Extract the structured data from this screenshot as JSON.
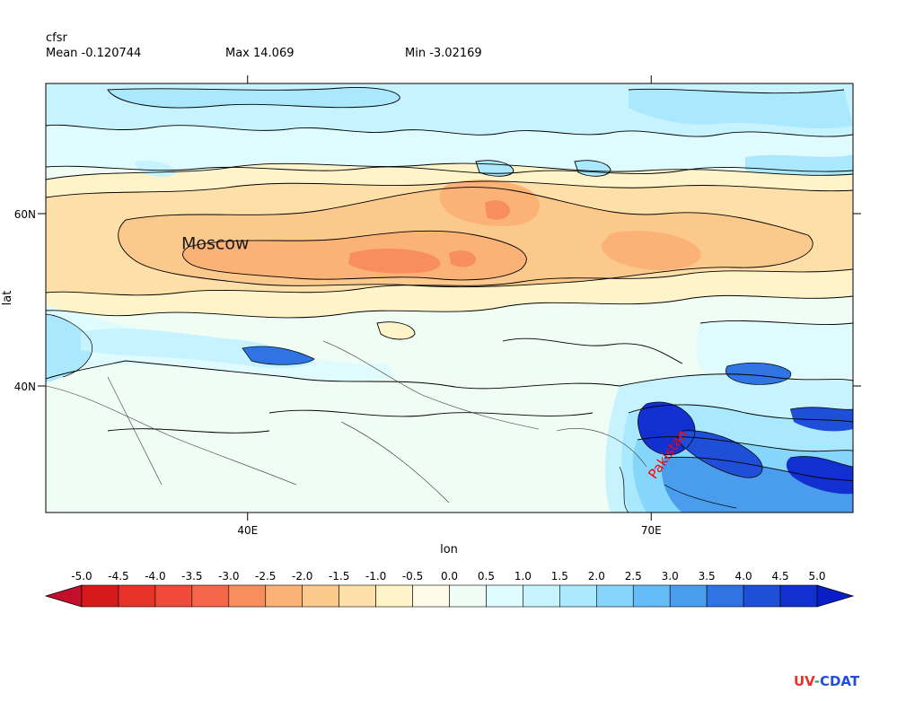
{
  "header": {
    "dataset": "cfsr",
    "mean": "Mean -0.120744",
    "max": "Max 14.069",
    "min": "Min -3.02169"
  },
  "map": {
    "xlabel": "lon",
    "ylabel": "lat",
    "x_ticks": [
      {
        "value": 40,
        "label": "40E"
      },
      {
        "value": 70,
        "label": "70E"
      }
    ],
    "y_ticks": [
      {
        "value": 40,
        "label": "40N"
      },
      {
        "value": 60,
        "label": "60N"
      }
    ],
    "lon_range": [
      25,
      85
    ],
    "lat_range": [
      25,
      75
    ],
    "place_labels": [
      {
        "text": "Moscow",
        "lon": 37.6,
        "lat": 55.7,
        "color": "#1a1a1a",
        "rotate": 0
      },
      {
        "text": "Pakistan",
        "lon": 71.5,
        "lat": 31.5,
        "color": "#ff0000",
        "rotate": -55
      }
    ]
  },
  "colorbar": {
    "levels": [
      "-5.0",
      "-4.5",
      "-4.0",
      "-3.5",
      "-3.0",
      "-2.5",
      "-2.0",
      "-1.5",
      "-1.0",
      "-0.5",
      "0.0",
      "0.5",
      "1.0",
      "1.5",
      "2.0",
      "2.5",
      "3.0",
      "3.5",
      "4.0",
      "4.5",
      "5.0"
    ],
    "colors": [
      "#d7191c",
      "#e8332b",
      "#f04a3a",
      "#f5674b",
      "#f88e5e",
      "#fbb276",
      "#fcc98d",
      "#fde0a8",
      "#fff3c9",
      "#fffbe8",
      "#effdf4",
      "#e0fbfd",
      "#c6f3fd",
      "#a9e8fd",
      "#86d6fb",
      "#65bbf5",
      "#4a9cec",
      "#2f74e2",
      "#1f4fd8",
      "#1230cf"
    ],
    "under_color": "#c40f2c",
    "over_color": "#0b1dc8"
  },
  "logo": {
    "text": "UV-CDAT",
    "colors": [
      "#e8332b",
      "#1f4fd8",
      "#2aa84a"
    ]
  }
}
